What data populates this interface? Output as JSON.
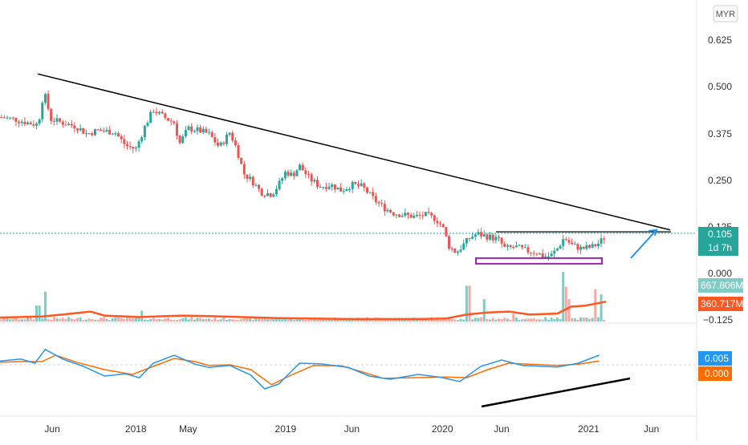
{
  "currency_badge": "MYR",
  "price_axis": {
    "ticks": [
      "0.625",
      "0.500",
      "0.375",
      "0.250",
      "0.125",
      "0.000",
      "−0.125"
    ],
    "tick_values": [
      0.625,
      0.5,
      0.375,
      0.25,
      0.125,
      0.0,
      -0.125
    ],
    "range": [
      -0.138,
      0.69
    ]
  },
  "last_price_label": "0.105",
  "countdown_label": "1d 7h",
  "volume_label": "667.806M",
  "volume_ma_label": "360.717M",
  "oscillator_label_1": "0.005",
  "oscillator_label_2": "0.000",
  "time_axis": [
    {
      "label": "Jun",
      "t": 0.075
    },
    {
      "label": "2018",
      "t": 0.195
    },
    {
      "label": "May",
      "t": 0.27
    },
    {
      "label": "2019",
      "t": 0.41
    },
    {
      "label": "Jun",
      "t": 0.505
    },
    {
      "label": "2020",
      "t": 0.635
    },
    {
      "label": "Jun",
      "t": 0.72
    },
    {
      "label": "2021",
      "t": 0.845
    },
    {
      "label": "Jun",
      "t": 0.935
    }
  ],
  "colors": {
    "up": "#26a69a",
    "down": "#ef5350",
    "volume_ma": "#ff5722",
    "osc_fast": "#2196f3",
    "osc_slow": "#ff6d00",
    "trend": "#000000",
    "box": "#9c27b0",
    "arrow": "#2196f3",
    "price_line": "#26a69a"
  },
  "chart_data": {
    "type": "candlestick",
    "price_points": [
      [
        0.0,
        0.42
      ],
      [
        0.02,
        0.415
      ],
      [
        0.04,
        0.405
      ],
      [
        0.055,
        0.4
      ],
      [
        0.06,
        0.465
      ],
      [
        0.066,
        0.475
      ],
      [
        0.072,
        0.415
      ],
      [
        0.09,
        0.405
      ],
      [
        0.11,
        0.395
      ],
      [
        0.125,
        0.375
      ],
      [
        0.14,
        0.385
      ],
      [
        0.165,
        0.38
      ],
      [
        0.18,
        0.345
      ],
      [
        0.195,
        0.335
      ],
      [
        0.208,
        0.395
      ],
      [
        0.22,
        0.44
      ],
      [
        0.235,
        0.42
      ],
      [
        0.25,
        0.405
      ],
      [
        0.258,
        0.35
      ],
      [
        0.27,
        0.39
      ],
      [
        0.285,
        0.385
      ],
      [
        0.3,
        0.375
      ],
      [
        0.315,
        0.34
      ],
      [
        0.33,
        0.38
      ],
      [
        0.34,
        0.335
      ],
      [
        0.35,
        0.27
      ],
      [
        0.362,
        0.25
      ],
      [
        0.375,
        0.22
      ],
      [
        0.39,
        0.215
      ],
      [
        0.4,
        0.24
      ],
      [
        0.41,
        0.275
      ],
      [
        0.42,
        0.265
      ],
      [
        0.43,
        0.29
      ],
      [
        0.445,
        0.255
      ],
      [
        0.46,
        0.235
      ],
      [
        0.475,
        0.24
      ],
      [
        0.49,
        0.225
      ],
      [
        0.505,
        0.24
      ],
      [
        0.52,
        0.235
      ],
      [
        0.535,
        0.205
      ],
      [
        0.55,
        0.18
      ],
      [
        0.565,
        0.165
      ],
      [
        0.58,
        0.16
      ],
      [
        0.595,
        0.155
      ],
      [
        0.61,
        0.16
      ],
      [
        0.625,
        0.15
      ],
      [
        0.635,
        0.13
      ],
      [
        0.645,
        0.075
      ],
      [
        0.655,
        0.06
      ],
      [
        0.665,
        0.08
      ],
      [
        0.675,
        0.1
      ],
      [
        0.685,
        0.11
      ],
      [
        0.695,
        0.105
      ],
      [
        0.705,
        0.1
      ],
      [
        0.715,
        0.095
      ],
      [
        0.725,
        0.07
      ],
      [
        0.74,
        0.075
      ],
      [
        0.755,
        0.065
      ],
      [
        0.77,
        0.06
      ],
      [
        0.78,
        0.05
      ],
      [
        0.79,
        0.05
      ],
      [
        0.8,
        0.07
      ],
      [
        0.81,
        0.1
      ],
      [
        0.82,
        0.08
      ],
      [
        0.835,
        0.07
      ],
      [
        0.85,
        0.075
      ],
      [
        0.86,
        0.085
      ],
      [
        0.87,
        0.105
      ]
    ],
    "volume_spikes": [
      [
        0.064,
        0.6
      ],
      [
        0.055,
        0.32
      ],
      [
        0.205,
        0.22
      ],
      [
        0.672,
        0.72
      ],
      [
        0.696,
        0.45
      ],
      [
        0.738,
        0.15
      ],
      [
        0.808,
        1.0
      ],
      [
        0.812,
        0.7
      ],
      [
        0.818,
        0.45
      ],
      [
        0.855,
        0.65
      ],
      [
        0.862,
        0.55
      ]
    ],
    "volume_ma": [
      [
        0.0,
        0.08
      ],
      [
        0.06,
        0.1
      ],
      [
        0.09,
        0.14
      ],
      [
        0.13,
        0.2
      ],
      [
        0.15,
        0.12
      ],
      [
        0.2,
        0.09
      ],
      [
        0.26,
        0.12
      ],
      [
        0.3,
        0.11
      ],
      [
        0.4,
        0.07
      ],
      [
        0.5,
        0.05
      ],
      [
        0.6,
        0.05
      ],
      [
        0.64,
        0.06
      ],
      [
        0.67,
        0.14
      ],
      [
        0.7,
        0.18
      ],
      [
        0.73,
        0.2
      ],
      [
        0.76,
        0.14
      ],
      [
        0.8,
        0.16
      ],
      [
        0.82,
        0.3
      ],
      [
        0.84,
        0.32
      ],
      [
        0.87,
        0.4
      ]
    ],
    "osc_fast": [
      [
        0.0,
        0.12
      ],
      [
        0.03,
        0.18
      ],
      [
        0.05,
        0.05
      ],
      [
        0.065,
        0.48
      ],
      [
        0.09,
        0.18
      ],
      [
        0.12,
        -0.05
      ],
      [
        0.15,
        -0.35
      ],
      [
        0.18,
        -0.28
      ],
      [
        0.2,
        -0.4
      ],
      [
        0.22,
        0.05
      ],
      [
        0.25,
        0.3
      ],
      [
        0.28,
        0.02
      ],
      [
        0.3,
        -0.08
      ],
      [
        0.33,
        -0.02
      ],
      [
        0.36,
        -0.32
      ],
      [
        0.38,
        -0.75
      ],
      [
        0.4,
        -0.6
      ],
      [
        0.43,
        0.05
      ],
      [
        0.46,
        0.03
      ],
      [
        0.5,
        -0.08
      ],
      [
        0.53,
        -0.35
      ],
      [
        0.56,
        -0.45
      ],
      [
        0.6,
        -0.3
      ],
      [
        0.63,
        -0.38
      ],
      [
        0.66,
        -0.52
      ],
      [
        0.69,
        -0.05
      ],
      [
        0.72,
        0.15
      ],
      [
        0.75,
        -0.02
      ],
      [
        0.8,
        -0.07
      ],
      [
        0.83,
        0.05
      ],
      [
        0.86,
        0.3
      ]
    ],
    "osc_slow": [
      [
        0.0,
        0.08
      ],
      [
        0.03,
        0.1
      ],
      [
        0.06,
        0.1
      ],
      [
        0.08,
        0.3
      ],
      [
        0.11,
        0.08
      ],
      [
        0.15,
        -0.15
      ],
      [
        0.19,
        -0.3
      ],
      [
        0.22,
        -0.05
      ],
      [
        0.25,
        0.2
      ],
      [
        0.28,
        0.1
      ],
      [
        0.3,
        -0.02
      ],
      [
        0.33,
        0.0
      ],
      [
        0.36,
        -0.15
      ],
      [
        0.39,
        -0.62
      ],
      [
        0.42,
        -0.3
      ],
      [
        0.45,
        -0.02
      ],
      [
        0.49,
        -0.03
      ],
      [
        0.52,
        -0.22
      ],
      [
        0.55,
        -0.42
      ],
      [
        0.6,
        -0.4
      ],
      [
        0.64,
        -0.38
      ],
      [
        0.67,
        -0.4
      ],
      [
        0.7,
        -0.15
      ],
      [
        0.73,
        0.05
      ],
      [
        0.76,
        0.02
      ],
      [
        0.8,
        -0.02
      ],
      [
        0.83,
        0.02
      ],
      [
        0.86,
        0.12
      ]
    ]
  }
}
